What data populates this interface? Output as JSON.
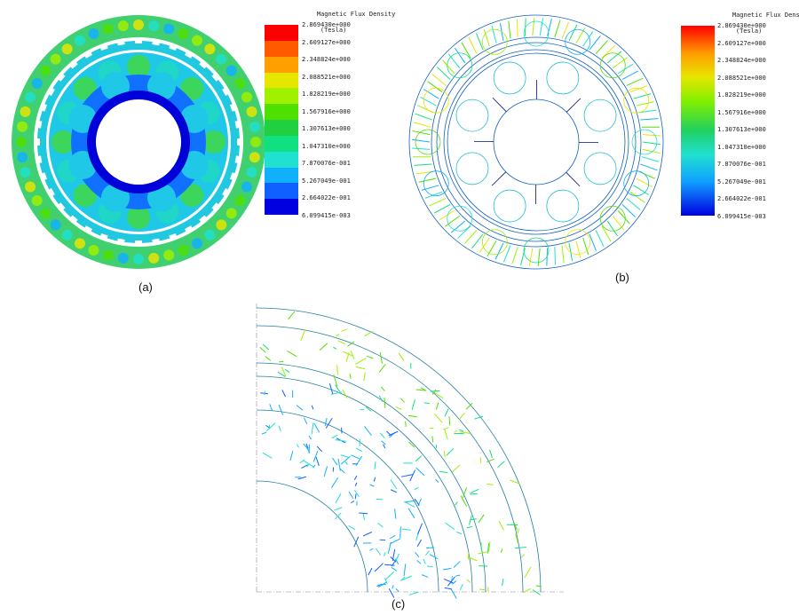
{
  "figure": {
    "panel_a": {
      "caption": "(a)"
    },
    "panel_b": {
      "caption": "(b)"
    },
    "panel_c": {
      "caption": "(c)"
    }
  },
  "legend_a": {
    "title_line1": "Magnetic Flux Density",
    "title_line2": "(Tesla)",
    "levels": [
      "2.869430e+000",
      "2.609127e+000",
      "2.348824e+000",
      "2.088521e+000",
      "1.828219e+000",
      "1.567916e+000",
      "1.307613e+000",
      "1.047310e+000",
      "7.870076e-001",
      "5.267049e-001",
      "2.664022e-001",
      "6.099415e-003"
    ],
    "colors": [
      "#ff0000",
      "#ff5a00",
      "#ffa000",
      "#e6e600",
      "#a0f000",
      "#50e000",
      "#20d040",
      "#10e080",
      "#20e0d0",
      "#10b0ff",
      "#1060ff",
      "#0000e0"
    ]
  },
  "legend_b": {
    "title_line1": "Magnetic Flux Density",
    "title_line2": "(Tesla)",
    "levels": [
      "2.869430e+000",
      "2.609127e+000",
      "2.348824e+000",
      "2.088521e+000",
      "1.828219e+000",
      "1.567916e+000",
      "1.307613e+000",
      "1.047310e+000",
      "7.870076e-001",
      "5.267049e-001",
      "2.664022e-001",
      "6.099415e-003"
    ]
  }
}
